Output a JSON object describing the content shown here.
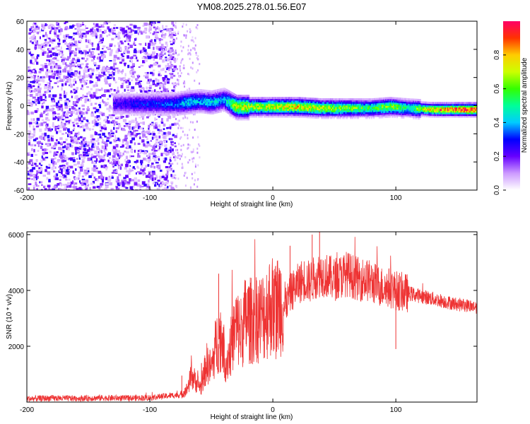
{
  "chart_data": [
    {
      "type": "heatmap",
      "title": "YM08.2025.278.01.56.E07",
      "xlabel": "Height of straight line (km)",
      "ylabel": "Frequency (Hz)",
      "xlim": [
        -200,
        166
      ],
      "ylim": [
        -60,
        60
      ],
      "x_ticks": [
        -200,
        -100,
        0,
        100
      ],
      "x_tick_labels": [
        "-200",
        "-100",
        "0",
        "100"
      ],
      "y_ticks": [
        -60,
        -40,
        -20,
        0,
        20,
        40,
        60
      ],
      "y_tick_labels": [
        "-60",
        "-40",
        "-20",
        "0",
        "20",
        "40",
        "60"
      ],
      "colorbar": {
        "label": "Normalized spectral amplitude",
        "range": [
          0,
          1
        ],
        "ticks": [
          0.0,
          0.2,
          0.4,
          0.6,
          0.8
        ],
        "tick_labels": [
          "0.0",
          "0.2",
          "0.4",
          "0.6",
          "0.8"
        ],
        "colors": [
          "#ffffff",
          "#cc99ff",
          "#6600ff",
          "#0000ff",
          "#00ccff",
          "#00ff99",
          "#33ff00",
          "#ccff00",
          "#ffcc00",
          "#ff3300",
          "#ff0066"
        ]
      },
      "noise_region_km": [
        -200,
        -80
      ],
      "sparse_region_km": [
        -80,
        -60
      ],
      "signal_track": [
        {
          "x": -130,
          "freq": 2,
          "amp": 0.25
        },
        {
          "x": -110,
          "freq": 2,
          "amp": 0.3
        },
        {
          "x": -80,
          "freq": 2,
          "amp": 0.35
        },
        {
          "x": -70,
          "freq": 3,
          "amp": 0.45
        },
        {
          "x": -60,
          "freq": 4,
          "amp": 0.4
        },
        {
          "x": -50,
          "freq": 3,
          "amp": 0.45
        },
        {
          "x": -40,
          "freq": 5,
          "amp": 0.4
        },
        {
          "x": -30,
          "freq": 0,
          "amp": 0.75
        },
        {
          "x": -15,
          "freq": 0,
          "amp": 0.7
        },
        {
          "x": 0,
          "freq": 0,
          "amp": 0.75
        },
        {
          "x": 20,
          "freq": 0,
          "amp": 0.8
        },
        {
          "x": 40,
          "freq": -1,
          "amp": 0.7
        },
        {
          "x": 60,
          "freq": -1,
          "amp": 0.65
        },
        {
          "x": 80,
          "freq": -1,
          "amp": 0.55
        },
        {
          "x": 95,
          "freq": 0,
          "amp": 0.7
        },
        {
          "x": 110,
          "freq": -1,
          "amp": 0.5
        },
        {
          "x": 130,
          "freq": -2,
          "amp": 0.85
        },
        {
          "x": 150,
          "freq": -2,
          "amp": 0.95
        },
        {
          "x": 166,
          "freq": -2,
          "amp": 1.0
        }
      ]
    },
    {
      "type": "line",
      "xlabel": "Height of straight line (km)",
      "ylabel": "SNR (10 * v/v)",
      "xlim": [
        -200,
        166
      ],
      "ylim": [
        0,
        6100
      ],
      "x_ticks": [
        -200,
        -100,
        0,
        100
      ],
      "x_tick_labels": [
        "-200",
        "-100",
        "0",
        "100"
      ],
      "y_ticks": [
        2000,
        4000,
        6000
      ],
      "y_tick_labels": [
        "2000",
        "4000",
        "6000"
      ],
      "color": "#ee3333",
      "series": [
        {
          "name": "SNR",
          "x": [
            -200,
            -180,
            -160,
            -140,
            -120,
            -100,
            -90,
            -80,
            -75,
            -70,
            -66,
            -62,
            -58,
            -54,
            -50,
            -46,
            -42,
            -38,
            -34,
            -30,
            -26,
            -22,
            -18,
            -14,
            -10,
            -6,
            -2,
            2,
            6,
            10,
            14,
            18,
            22,
            26,
            30,
            35,
            40,
            45,
            50,
            55,
            60,
            65,
            70,
            75,
            80,
            85,
            90,
            95,
            100,
            105,
            110,
            115,
            120,
            130,
            140,
            150,
            160,
            166
          ],
          "values": [
            120,
            140,
            130,
            150,
            140,
            160,
            200,
            250,
            250,
            450,
            950,
            700,
            500,
            1400,
            1200,
            2100,
            2400,
            1400,
            2000,
            2700,
            2500,
            3000,
            2900,
            3100,
            3000,
            3200,
            3500,
            3300,
            3600,
            3400,
            3900,
            4100,
            4300,
            4400,
            4300,
            4500,
            4600,
            4500,
            4400,
            4500,
            4600,
            4500,
            4400,
            4400,
            4300,
            4200,
            4100,
            4100,
            4000,
            3950,
            3900,
            3850,
            3800,
            3700,
            3600,
            3500,
            3450,
            3400
          ]
        }
      ],
      "spikes": [
        {
          "x": -74,
          "value": 950
        },
        {
          "x": -58,
          "value": 1400
        },
        {
          "x": -44,
          "value": 4600
        },
        {
          "x": -20,
          "value": 4100
        },
        {
          "x": 14,
          "value": 5600
        },
        {
          "x": 32,
          "value": 6000
        },
        {
          "x": 38,
          "value": 6100
        },
        {
          "x": 100,
          "value": 1900
        }
      ]
    }
  ]
}
